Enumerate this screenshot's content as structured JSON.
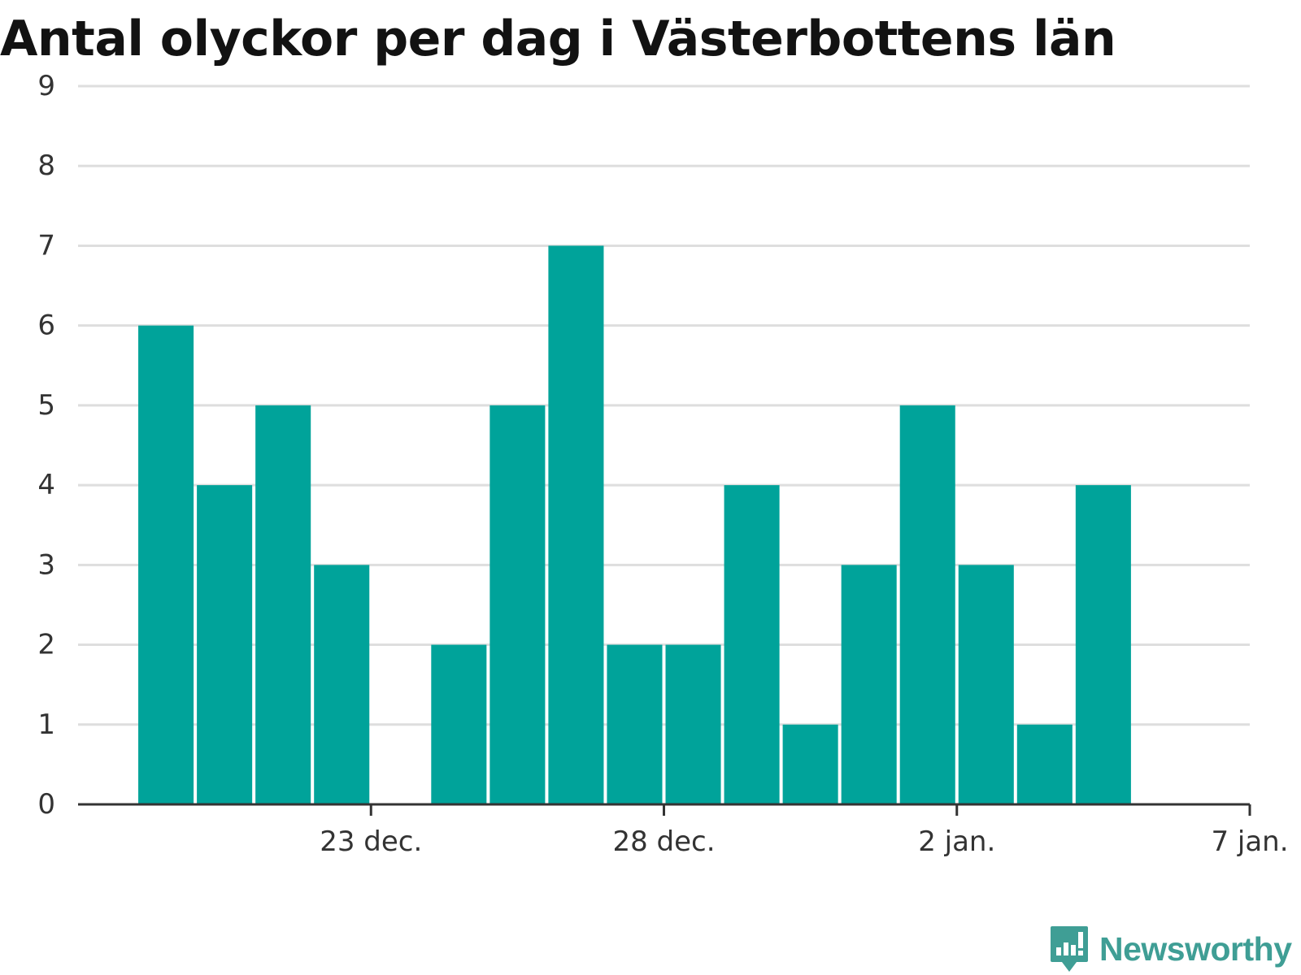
{
  "chart_data": {
    "type": "bar",
    "title": "Antal olyckor per dag i Västerbottens län",
    "xlabel": "",
    "ylabel": "",
    "x": [
      "2022-12-19",
      "2022-12-20",
      "2022-12-21",
      "2022-12-22",
      "2022-12-23",
      "2022-12-24",
      "2022-12-25",
      "2022-12-26",
      "2022-12-27",
      "2022-12-28",
      "2022-12-29",
      "2022-12-30",
      "2022-12-31",
      "2023-01-01",
      "2023-01-02",
      "2023-01-03",
      "2023-01-04",
      "2023-01-05"
    ],
    "values": [
      6,
      4,
      5,
      3,
      0,
      2,
      5,
      7,
      2,
      2,
      4,
      1,
      3,
      5,
      3,
      1,
      4,
      0
    ],
    "xlim": [
      "2022-12-18",
      "2023-01-07"
    ],
    "ylim": [
      0,
      9
    ],
    "yticks": [
      0,
      1,
      2,
      3,
      4,
      5,
      6,
      7,
      8,
      9
    ],
    "xticks": [
      {
        "date": "2022-12-23",
        "label": "23 dec."
      },
      {
        "date": "2022-12-28",
        "label": "28 dec."
      },
      {
        "date": "2023-01-02",
        "label": "2 jan."
      },
      {
        "date": "2023-01-07",
        "label": "7 jan."
      }
    ],
    "grid": true,
    "legend": "none",
    "colors": {
      "bar": "#00a39a",
      "grid": "#dedede",
      "axis": "#333333",
      "text": "#333333"
    }
  },
  "branding": {
    "name": "Newsworthy",
    "color": "#3f9e95",
    "icon": "newsworthy-logo-icon"
  }
}
